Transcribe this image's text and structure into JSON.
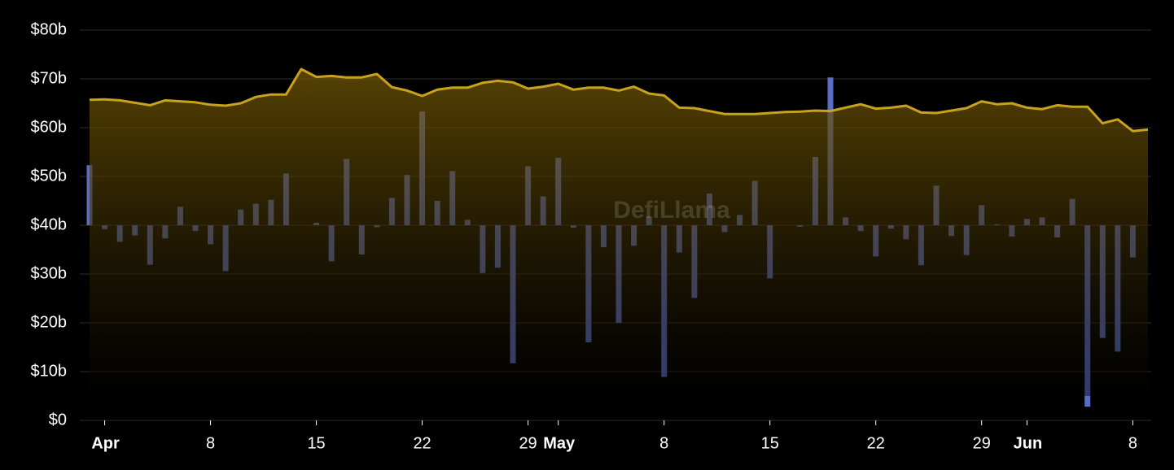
{
  "chart_data": {
    "type": "area-bar",
    "watermark": "DefiLlama",
    "categories": [
      null,
      "Apr",
      null,
      null,
      null,
      null,
      null,
      null,
      "8",
      null,
      null,
      null,
      null,
      null,
      null,
      "15",
      null,
      null,
      null,
      null,
      null,
      null,
      "22",
      null,
      null,
      null,
      null,
      null,
      null,
      "29",
      null,
      "May",
      null,
      null,
      null,
      null,
      null,
      null,
      "8",
      null,
      null,
      null,
      null,
      null,
      null,
      "15",
      null,
      null,
      null,
      null,
      null,
      null,
      "22",
      null,
      null,
      null,
      null,
      null,
      null,
      "29",
      null,
      null,
      "Jun",
      null,
      null,
      null,
      null,
      null,
      null,
      "8",
      null
    ],
    "series": [
      {
        "kind": "area",
        "color": "#c9a21c",
        "values": [
          65.7,
          65.8,
          65.6,
          65.1,
          64.6,
          65.6,
          65.4,
          65.2,
          64.7,
          64.5,
          65.0,
          66.3,
          66.8,
          66.8,
          72.0,
          70.4,
          70.6,
          70.3,
          70.3,
          71.0,
          68.3,
          67.6,
          66.5,
          67.8,
          68.2,
          68.2,
          69.2,
          69.6,
          69.3,
          68.0,
          68.4,
          69.0,
          67.8,
          68.2,
          68.2,
          67.6,
          68.4,
          67.0,
          66.6,
          64.1,
          64.0,
          63.4,
          62.8,
          62.8,
          62.8,
          63.0,
          63.2,
          63.3,
          63.5,
          63.4,
          64.1,
          64.8,
          63.9,
          64.1,
          64.5,
          63.1,
          63.0,
          63.5,
          64.0,
          65.4,
          64.8,
          65.0,
          64.1,
          63.8,
          64.6,
          64.3,
          64.3,
          60.9,
          61.7,
          59.3,
          59.6
        ]
      },
      {
        "kind": "bar",
        "color": "#5a6cc4",
        "values": [
          52.3,
          39.2,
          36.6,
          37.9,
          31.9,
          37.3,
          43.8,
          38.8,
          36.1,
          30.6,
          43.2,
          44.4,
          45.2,
          50.6,
          40.0,
          40.5,
          32.6,
          53.6,
          34.0,
          39.6,
          45.6,
          50.3,
          63.3,
          45.0,
          51.1,
          41.1,
          30.2,
          31.3,
          11.7,
          52.1,
          45.9,
          53.8,
          39.5,
          16.0,
          35.5,
          20.0,
          35.8,
          41.8,
          8.9,
          34.4,
          25.1,
          46.5,
          38.6,
          42.1,
          49.1,
          29.1,
          40.0,
          39.7,
          54.0,
          70.3,
          41.6,
          38.8,
          33.6,
          39.3,
          37.1,
          31.8,
          48.1,
          37.8,
          33.9,
          44.1,
          40.2,
          37.7,
          41.3,
          41.6,
          37.5,
          45.4,
          2.8,
          16.9,
          14.1,
          33.4,
          40.0
        ]
      }
    ],
    "bar_base": 40,
    "ylim": [
      0,
      80
    ],
    "yticks": [
      {
        "value": 0,
        "label": "$0"
      },
      {
        "value": 10,
        "label": "$10b"
      },
      {
        "value": 20,
        "label": "$20b"
      },
      {
        "value": 30,
        "label": "$30b"
      },
      {
        "value": 40,
        "label": "$40b"
      },
      {
        "value": 50,
        "label": "$50b"
      },
      {
        "value": 60,
        "label": "$60b"
      },
      {
        "value": 70,
        "label": "$70b"
      },
      {
        "value": 80,
        "label": "$80b"
      }
    ],
    "grid": true
  }
}
